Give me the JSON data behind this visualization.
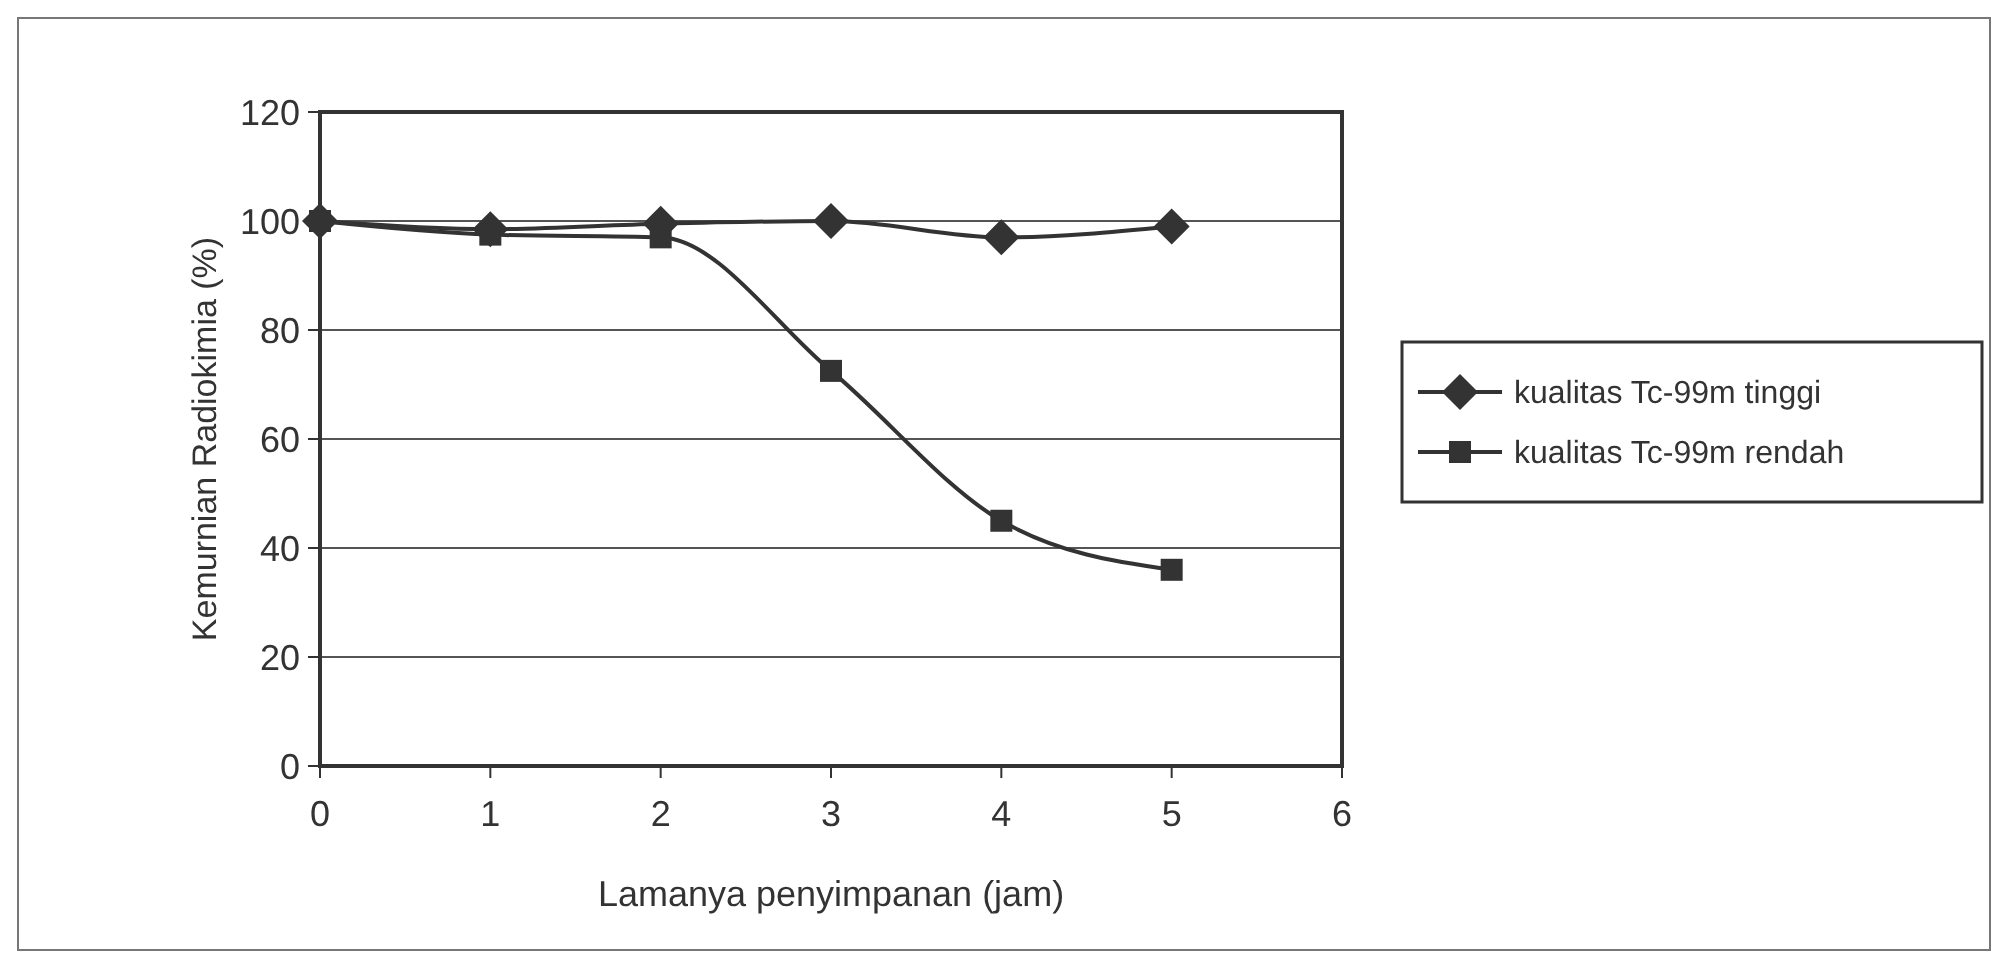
{
  "chart_data": {
    "type": "line",
    "xlabel": "Lamanya penyimpanan (jam)",
    "ylabel": "Kemurnian Radiokimia (%)",
    "x": [
      0,
      1,
      2,
      3,
      4,
      5
    ],
    "xlim": [
      0,
      6
    ],
    "xticks": [
      0,
      1,
      2,
      3,
      4,
      5,
      6
    ],
    "ylim": [
      0,
      120
    ],
    "yticks": [
      0,
      20,
      40,
      60,
      80,
      100,
      120
    ],
    "grid": "y",
    "legend": "right",
    "series": [
      {
        "name": "kualitas Tc-99m tinggi",
        "color": "#333333",
        "marker": "diamond",
        "values": [
          100,
          98.5,
          99.5,
          100,
          97,
          99
        ]
      },
      {
        "name": "kualitas Tc-99m rendah",
        "color": "#333333",
        "marker": "square",
        "values": [
          100,
          97.5,
          97,
          72.5,
          45,
          36
        ]
      }
    ]
  }
}
